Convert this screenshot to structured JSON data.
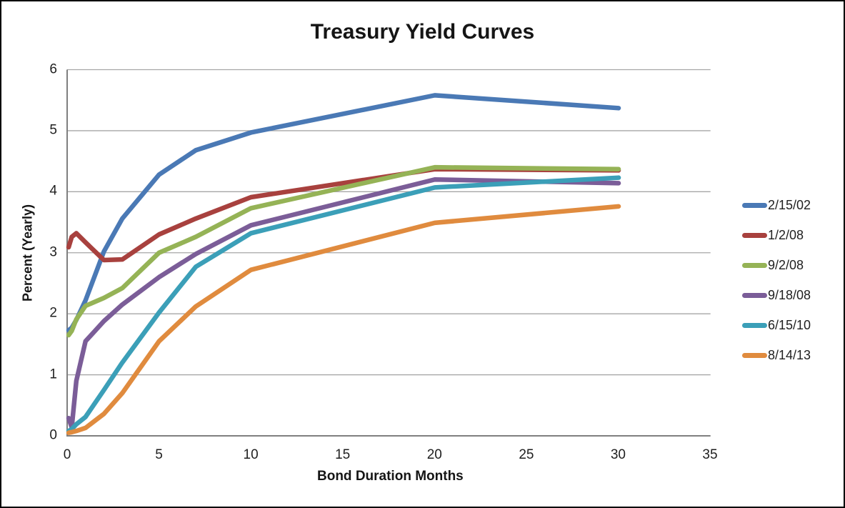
{
  "title": "Treasury Yield Curves",
  "chart_data": {
    "type": "line",
    "title": "Treasury Yield Curves",
    "xlabel": "Bond Duration Months",
    "ylabel": "Percent (Yearly)",
    "xlim": [
      0,
      35
    ],
    "ylim": [
      0,
      6
    ],
    "xticks": [
      "0",
      "5",
      "10",
      "15",
      "20",
      "25",
      "30",
      "35"
    ],
    "yticks": [
      "0",
      "1",
      "2",
      "3",
      "4",
      "5",
      "6"
    ],
    "grid": "horizontal",
    "legend_position": "right",
    "x": [
      0.08,
      0.25,
      0.5,
      1,
      2,
      3,
      5,
      7,
      10,
      20,
      30
    ],
    "series": [
      {
        "name": "2/15/02",
        "color": "#4A79B5",
        "values": [
          1.73,
          1.77,
          1.9,
          2.22,
          3.02,
          3.56,
          4.28,
          4.68,
          4.97,
          5.58,
          5.37
        ]
      },
      {
        "name": "1/2/08",
        "color": "#A8413E",
        "values": [
          3.09,
          3.26,
          3.32,
          3.17,
          2.88,
          2.89,
          3.3,
          3.56,
          3.91,
          4.37,
          4.35
        ]
      },
      {
        "name": "9/2/08",
        "color": "#95B356",
        "values": [
          1.65,
          1.72,
          1.91,
          2.13,
          2.26,
          2.42,
          3.0,
          3.26,
          3.73,
          4.4,
          4.37
        ]
      },
      {
        "name": "9/18/08",
        "color": "#7B5D98",
        "values": [
          0.29,
          0.14,
          0.9,
          1.55,
          1.88,
          2.15,
          2.6,
          2.98,
          3.45,
          4.2,
          4.14
        ]
      },
      {
        "name": "6/15/10",
        "color": "#3B9FB8",
        "values": [
          0.08,
          0.11,
          0.19,
          0.31,
          0.75,
          1.2,
          2.02,
          2.77,
          3.32,
          4.07,
          4.23
        ]
      },
      {
        "name": "8/14/13",
        "color": "#E08B3E",
        "values": [
          0.05,
          0.06,
          0.08,
          0.13,
          0.36,
          0.7,
          1.55,
          2.12,
          2.72,
          3.49,
          3.76
        ]
      }
    ],
    "colors": {
      "gridline": "#A6A6A6",
      "axis": "#7F7F7F",
      "text": "#1F1F1F"
    }
  }
}
